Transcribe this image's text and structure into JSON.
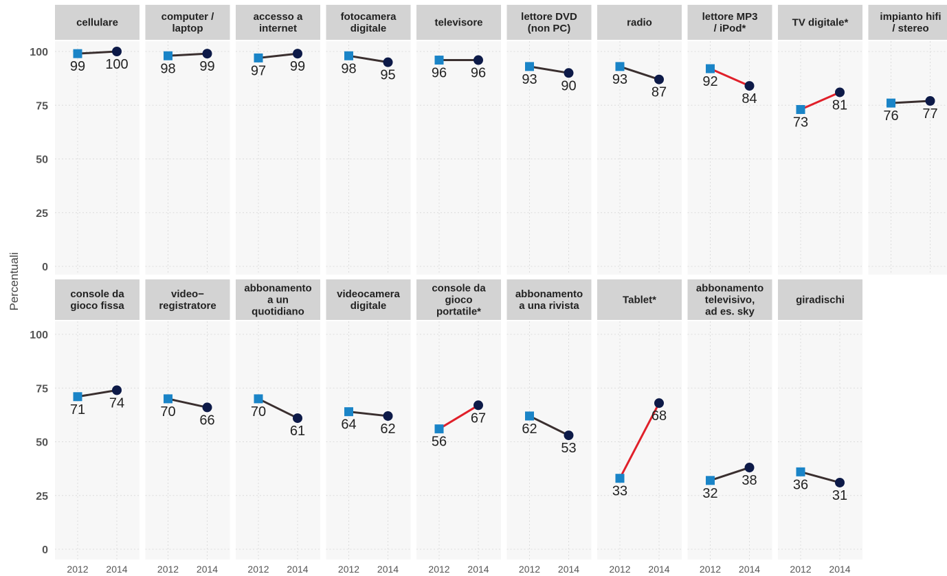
{
  "chart_data": {
    "type": "line",
    "ylabel": "Percentuali",
    "ylim": [
      0,
      100
    ],
    "y_ticks": [
      "0",
      "25",
      "50",
      "75",
      "100"
    ],
    "x": [
      "2012",
      "2014"
    ],
    "grid": true,
    "colors": {
      "panel_bg": "#f7f7f7",
      "strip_bg": "#d3d3d3",
      "grid": "#dcdcdc",
      "line_default": "#3a2f2f",
      "line_highlight": "#e0202a",
      "marker_2012": "#1a84c7",
      "marker_2014": "#0d1a48"
    },
    "panels": [
      {
        "label": [
          "cellulare"
        ],
        "values": [
          99,
          100
        ],
        "labels": [
          "99",
          "100"
        ],
        "highlight": false
      },
      {
        "label": [
          "computer /",
          "laptop"
        ],
        "values": [
          98,
          99
        ],
        "labels": [
          "98",
          "99"
        ],
        "highlight": false
      },
      {
        "label": [
          "accesso a",
          "internet"
        ],
        "values": [
          97,
          99
        ],
        "labels": [
          "97",
          "99"
        ],
        "highlight": false
      },
      {
        "label": [
          "fotocamera",
          "digitale"
        ],
        "values": [
          98,
          95
        ],
        "labels": [
          "98",
          "95"
        ],
        "highlight": false
      },
      {
        "label": [
          "televisore"
        ],
        "values": [
          96,
          96
        ],
        "labels": [
          "96",
          "96"
        ],
        "highlight": false
      },
      {
        "label": [
          "lettore DVD",
          "(non PC)"
        ],
        "values": [
          93,
          90
        ],
        "labels": [
          "93",
          "90"
        ],
        "highlight": false
      },
      {
        "label": [
          "radio"
        ],
        "values": [
          93,
          87
        ],
        "labels": [
          "93",
          "87"
        ],
        "highlight": false
      },
      {
        "label": [
          "lettore MP3",
          "/ iPod*"
        ],
        "values": [
          92,
          84
        ],
        "labels": [
          "92",
          "84"
        ],
        "highlight": true
      },
      {
        "label": [
          "TV digitale*"
        ],
        "values": [
          73,
          81
        ],
        "labels": [
          "73",
          "81"
        ],
        "highlight": true
      },
      {
        "label": [
          "impianto hifi",
          "/ stereo"
        ],
        "values": [
          76,
          77
        ],
        "labels": [
          "76",
          "77"
        ],
        "highlight": false
      },
      {
        "label": [
          "console da",
          "gioco fissa"
        ],
        "values": [
          71,
          74
        ],
        "labels": [
          "71",
          "74"
        ],
        "highlight": false
      },
      {
        "label": [
          "video−",
          "registratore"
        ],
        "values": [
          70,
          66
        ],
        "labels": [
          "70",
          "66"
        ],
        "highlight": false
      },
      {
        "label": [
          "abbonamento",
          "a un",
          "quotidiano"
        ],
        "values": [
          70,
          61
        ],
        "labels": [
          "70",
          "61"
        ],
        "highlight": false
      },
      {
        "label": [
          "videocamera",
          "digitale"
        ],
        "values": [
          64,
          62
        ],
        "labels": [
          "64",
          "62"
        ],
        "highlight": false
      },
      {
        "label": [
          "console da",
          "gioco",
          "portatile*"
        ],
        "values": [
          56,
          67
        ],
        "labels": [
          "56",
          "67"
        ],
        "highlight": true
      },
      {
        "label": [
          "abbonamento",
          "a una rivista"
        ],
        "values": [
          62,
          53
        ],
        "labels": [
          "62",
          "53"
        ],
        "highlight": false
      },
      {
        "label": [
          "Tablet*"
        ],
        "values": [
          33,
          68
        ],
        "labels": [
          "33",
          "68"
        ],
        "highlight": true
      },
      {
        "label": [
          "abbonamento",
          "televisivo,",
          "ad es. sky"
        ],
        "values": [
          32,
          38
        ],
        "labels": [
          "32",
          "38"
        ],
        "highlight": false
      },
      {
        "label": [
          "giradischi"
        ],
        "values": [
          36,
          31
        ],
        "labels": [
          "36",
          "31"
        ],
        "highlight": false
      }
    ]
  }
}
